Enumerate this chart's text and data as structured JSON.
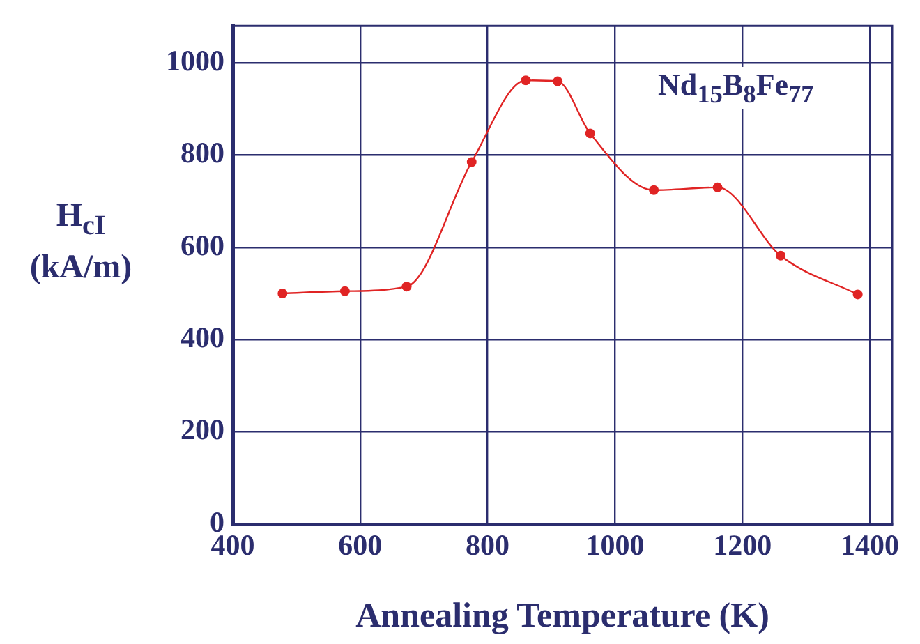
{
  "chart_data": {
    "type": "line",
    "xlabel": "Annealing Temperature (K)",
    "ylabel": "H$_{cI}$ (kA/m)",
    "annotations": [
      "Nd$_{15}$B$_{8}$Fe$_{77}$"
    ],
    "x": [
      478,
      576,
      673,
      775,
      860,
      910,
      961,
      1061,
      1161,
      1260,
      1381
    ],
    "series": [
      {
        "color": "#e02424",
        "values": [
          500,
          505,
          515,
          785,
          962,
          960,
          847,
          724,
          730,
          582,
          498
        ]
      }
    ],
    "xlim": [
      400,
      1435
    ],
    "xticks": [
      400,
      600,
      800,
      1000,
      1200,
      1400
    ],
    "ylim": [
      0,
      1080
    ],
    "yticks": [
      0,
      200,
      400,
      600,
      800,
      1000
    ],
    "grid": true,
    "marker": "circle",
    "line_style": "solid",
    "legend": false
  }
}
